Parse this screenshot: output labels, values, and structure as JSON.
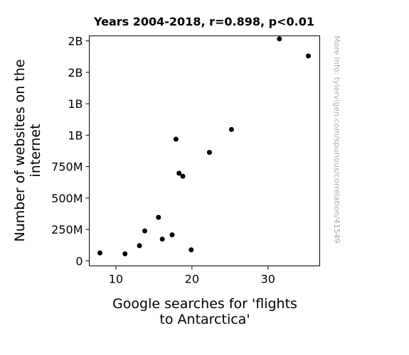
{
  "chart_data": {
    "type": "scatter",
    "title": "Years 2004-2018, r=0.898, p<0.01",
    "xlabel_lines": [
      "Google searches for 'flights",
      "to Antarctica'"
    ],
    "ylabel_lines": [
      "Number of websites on the",
      "internet"
    ],
    "xlim": [
      6.5,
      36.8
    ],
    "ylim": [
      -40000000,
      1790000000
    ],
    "x_ticks": [
      {
        "value": 10,
        "label": "10"
      },
      {
        "value": 20,
        "label": "20"
      },
      {
        "value": 30,
        "label": "30"
      }
    ],
    "y_ticks": [
      {
        "value": 0,
        "label": "0"
      },
      {
        "value": 250000000,
        "label": "250M"
      },
      {
        "value": 500000000,
        "label": "500M"
      },
      {
        "value": 750000000,
        "label": "750M"
      },
      {
        "value": 1000000000,
        "label": "1B"
      },
      {
        "value": 1250000000,
        "label": "1B"
      },
      {
        "value": 1500000000,
        "label": "2B"
      },
      {
        "value": 1750000000,
        "label": "2B"
      }
    ],
    "points": [
      {
        "x": 7.9,
        "y": 63000000
      },
      {
        "x": 11.2,
        "y": 56000000
      },
      {
        "x": 13.1,
        "y": 121000000
      },
      {
        "x": 13.8,
        "y": 238000000
      },
      {
        "x": 15.6,
        "y": 346000000
      },
      {
        "x": 16.1,
        "y": 173000000
      },
      {
        "x": 17.4,
        "y": 207000000
      },
      {
        "x": 17.9,
        "y": 968000000
      },
      {
        "x": 18.3,
        "y": 697000000
      },
      {
        "x": 18.8,
        "y": 673000000
      },
      {
        "x": 19.9,
        "y": 88000000
      },
      {
        "x": 22.3,
        "y": 863000000
      },
      {
        "x": 25.2,
        "y": 1045000000
      },
      {
        "x": 31.5,
        "y": 1766000000
      },
      {
        "x": 35.3,
        "y": 1630000000
      }
    ],
    "marker_color": "#000000",
    "grid": false
  },
  "source_note": "More info: tylervigen.com/spurious/correlation/41549"
}
